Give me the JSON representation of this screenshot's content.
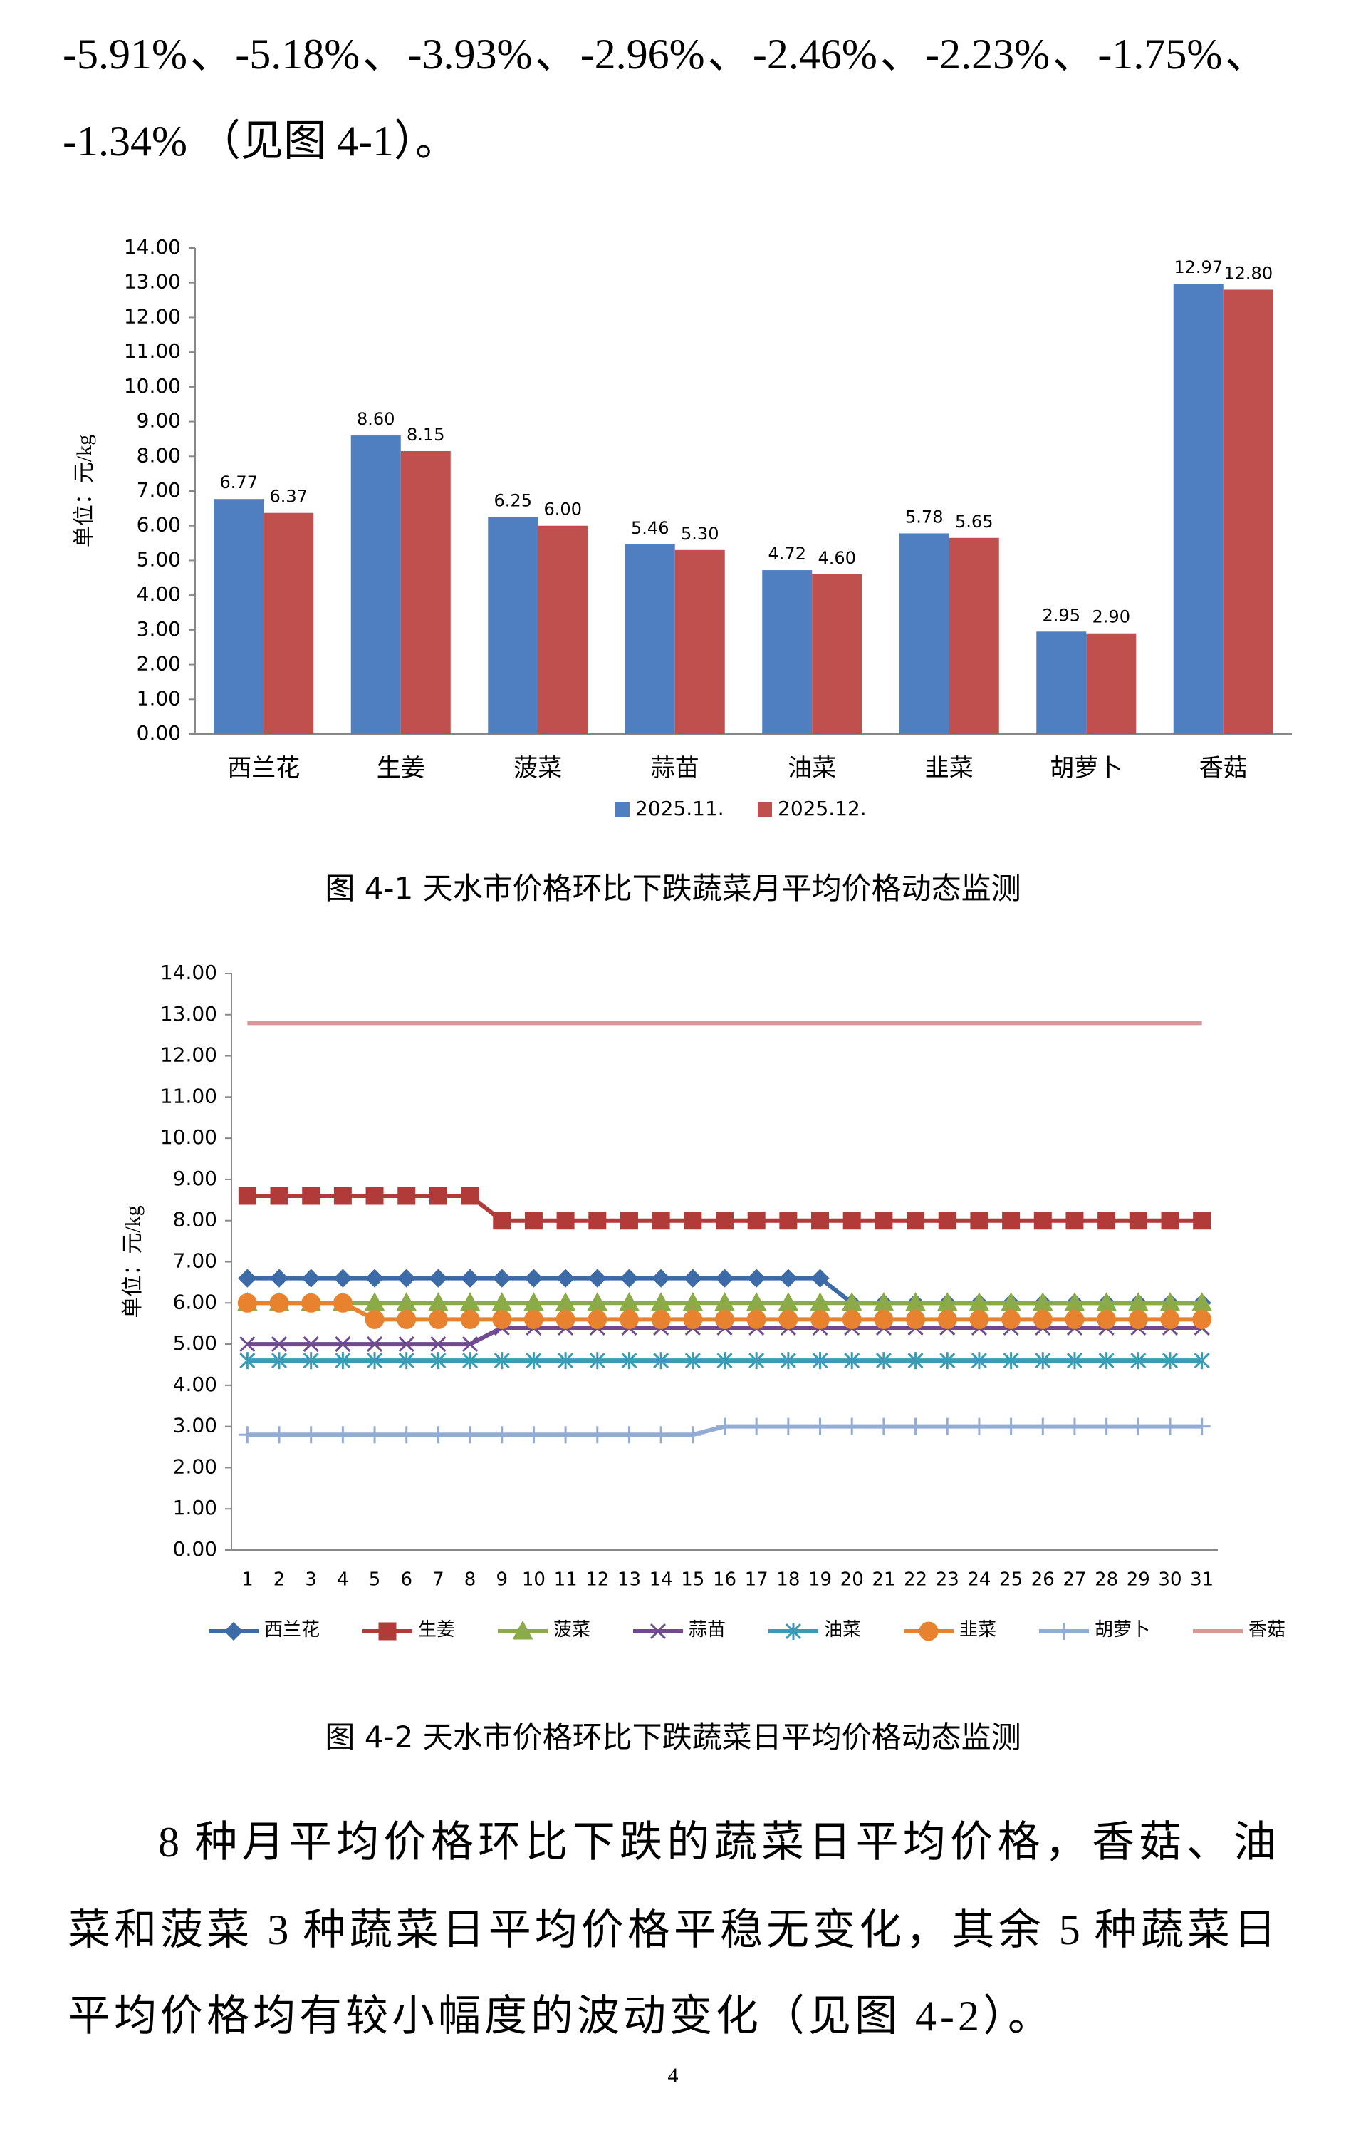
{
  "text_top": {
    "lines": [
      "-5.91%、-5.18%、-3.93%、-2.96%、-2.46%、-2.23%、-1.75%、",
      "-1.34% （见图 4-1）。"
    ]
  },
  "chart_data": [
    {
      "type": "bar",
      "y_label": "单位：元/kg",
      "categories": [
        "西兰花",
        "生姜",
        "菠菜",
        "蒜苗",
        "油菜",
        "韭菜",
        "胡萝卜",
        "香菇"
      ],
      "series": [
        {
          "name": "2025.11.",
          "color": "#4f7fc0",
          "values": [
            6.77,
            8.6,
            6.25,
            5.46,
            4.72,
            5.78,
            2.95,
            12.97
          ],
          "value_labels": [
            "6.77",
            "8.60",
            "6.25",
            "5.46",
            "4.72",
            "5.78",
            "2.95",
            "12.97"
          ]
        },
        {
          "name": "2025.12.",
          "color": "#c0504d",
          "values": [
            6.37,
            8.15,
            6.0,
            5.3,
            4.6,
            5.65,
            2.9,
            12.8
          ],
          "value_labels": [
            "6.37",
            "8.15",
            "6.00",
            "5.30",
            "4.60",
            "5.65",
            "2.90",
            "12.80"
          ]
        }
      ],
      "ylim": [
        0,
        14
      ],
      "yticks": [
        {
          "value": 0,
          "label": "0.00"
        },
        {
          "value": 1,
          "label": "1.00"
        },
        {
          "value": 2,
          "label": "2.00"
        },
        {
          "value": 3,
          "label": "3.00"
        },
        {
          "value": 4,
          "label": "4.00"
        },
        {
          "value": 5,
          "label": "5.00"
        },
        {
          "value": 6,
          "label": "6.00"
        },
        {
          "value": 7,
          "label": "7.00"
        },
        {
          "value": 8,
          "label": "8.00"
        },
        {
          "value": 9,
          "label": "9.00"
        },
        {
          "value": 10,
          "label": "10.00"
        },
        {
          "value": 11,
          "label": "11.00"
        },
        {
          "value": 12,
          "label": "12.00"
        },
        {
          "value": 13,
          "label": "13.00"
        },
        {
          "value": 14,
          "label": "14.00"
        }
      ],
      "grid": false,
      "legend": "bottom"
    },
    {
      "type": "line",
      "y_label": "单位：元/kg",
      "x": [
        1,
        2,
        3,
        4,
        5,
        6,
        7,
        8,
        9,
        10,
        11,
        12,
        13,
        14,
        15,
        16,
        17,
        18,
        19,
        20,
        21,
        22,
        23,
        24,
        25,
        26,
        27,
        28,
        29,
        30,
        31
      ],
      "xlim": [
        0.5,
        31.5
      ],
      "xticks": [
        1,
        2,
        3,
        4,
        5,
        6,
        7,
        8,
        9,
        10,
        11,
        12,
        13,
        14,
        15,
        16,
        17,
        18,
        19,
        20,
        21,
        22,
        23,
        24,
        25,
        26,
        27,
        28,
        29,
        30,
        31
      ],
      "series": [
        {
          "name": "西兰花",
          "color": "#3d6ba7",
          "marker": "diamond",
          "values": [
            6.6,
            6.6,
            6.6,
            6.6,
            6.6,
            6.6,
            6.6,
            6.6,
            6.6,
            6.6,
            6.6,
            6.6,
            6.6,
            6.6,
            6.6,
            6.6,
            6.6,
            6.6,
            6.6,
            6.0,
            6.0,
            6.0,
            6.0,
            6.0,
            6.0,
            6.0,
            6.0,
            6.0,
            6.0,
            6.0,
            6.0
          ]
        },
        {
          "name": "生姜",
          "color": "#b13b38",
          "marker": "square",
          "values": [
            8.6,
            8.6,
            8.6,
            8.6,
            8.6,
            8.6,
            8.6,
            8.6,
            8.0,
            8.0,
            8.0,
            8.0,
            8.0,
            8.0,
            8.0,
            8.0,
            8.0,
            8.0,
            8.0,
            8.0,
            8.0,
            8.0,
            8.0,
            8.0,
            8.0,
            8.0,
            8.0,
            8.0,
            8.0,
            8.0,
            8.0
          ]
        },
        {
          "name": "菠菜",
          "color": "#8aab48",
          "marker": "triangle",
          "values": [
            6.0,
            6.0,
            6.0,
            6.0,
            6.0,
            6.0,
            6.0,
            6.0,
            6.0,
            6.0,
            6.0,
            6.0,
            6.0,
            6.0,
            6.0,
            6.0,
            6.0,
            6.0,
            6.0,
            6.0,
            6.0,
            6.0,
            6.0,
            6.0,
            6.0,
            6.0,
            6.0,
            6.0,
            6.0,
            6.0,
            6.0
          ]
        },
        {
          "name": "蒜苗",
          "color": "#6f4a91",
          "marker": "x",
          "values": [
            5.0,
            5.0,
            5.0,
            5.0,
            5.0,
            5.0,
            5.0,
            5.0,
            5.4,
            5.4,
            5.4,
            5.4,
            5.4,
            5.4,
            5.4,
            5.4,
            5.4,
            5.4,
            5.4,
            5.4,
            5.4,
            5.4,
            5.4,
            5.4,
            5.4,
            5.4,
            5.4,
            5.4,
            5.4,
            5.4,
            5.4
          ]
        },
        {
          "name": "油菜",
          "color": "#3a9bb5",
          "marker": "asterisk",
          "values": [
            4.6,
            4.6,
            4.6,
            4.6,
            4.6,
            4.6,
            4.6,
            4.6,
            4.6,
            4.6,
            4.6,
            4.6,
            4.6,
            4.6,
            4.6,
            4.6,
            4.6,
            4.6,
            4.6,
            4.6,
            4.6,
            4.6,
            4.6,
            4.6,
            4.6,
            4.6,
            4.6,
            4.6,
            4.6,
            4.6,
            4.6
          ]
        },
        {
          "name": "韭菜",
          "color": "#e8822e",
          "marker": "circle",
          "values": [
            6.0,
            6.0,
            6.0,
            6.0,
            5.6,
            5.6,
            5.6,
            5.6,
            5.6,
            5.6,
            5.6,
            5.6,
            5.6,
            5.6,
            5.6,
            5.6,
            5.6,
            5.6,
            5.6,
            5.6,
            5.6,
            5.6,
            5.6,
            5.6,
            5.6,
            5.6,
            5.6,
            5.6,
            5.6,
            5.6,
            5.6
          ]
        },
        {
          "name": "胡萝卜",
          "color": "#93acd6",
          "marker": "plus",
          "values": [
            2.8,
            2.8,
            2.8,
            2.8,
            2.8,
            2.8,
            2.8,
            2.8,
            2.8,
            2.8,
            2.8,
            2.8,
            2.8,
            2.8,
            2.8,
            3.0,
            3.0,
            3.0,
            3.0,
            3.0,
            3.0,
            3.0,
            3.0,
            3.0,
            3.0,
            3.0,
            3.0,
            3.0,
            3.0,
            3.0,
            3.0
          ]
        },
        {
          "name": "香菇",
          "color": "#d99795",
          "marker": "none",
          "values": [
            12.8,
            12.8,
            12.8,
            12.8,
            12.8,
            12.8,
            12.8,
            12.8,
            12.8,
            12.8,
            12.8,
            12.8,
            12.8,
            12.8,
            12.8,
            12.8,
            12.8,
            12.8,
            12.8,
            12.8,
            12.8,
            12.8,
            12.8,
            12.8,
            12.8,
            12.8,
            12.8,
            12.8,
            12.8,
            12.8,
            12.8
          ]
        }
      ],
      "ylim": [
        0,
        14
      ],
      "yticks": [
        {
          "value": 0,
          "label": "0.00"
        },
        {
          "value": 1,
          "label": "1.00"
        },
        {
          "value": 2,
          "label": "2.00"
        },
        {
          "value": 3,
          "label": "3.00"
        },
        {
          "value": 4,
          "label": "4.00"
        },
        {
          "value": 5,
          "label": "5.00"
        },
        {
          "value": 6,
          "label": "6.00"
        },
        {
          "value": 7,
          "label": "7.00"
        },
        {
          "value": 8,
          "label": "8.00"
        },
        {
          "value": 9,
          "label": "9.00"
        },
        {
          "value": 10,
          "label": "10.00"
        },
        {
          "value": 11,
          "label": "11.00"
        },
        {
          "value": 12,
          "label": "12.00"
        },
        {
          "value": 13,
          "label": "13.00"
        },
        {
          "value": 14,
          "label": "14.00"
        }
      ],
      "grid": false,
      "legend": "bottom"
    }
  ],
  "captions": [
    "图 4-1  天水市价格环比下跌蔬菜月平均价格动态监测",
    "图 4-2  天水市价格环比下跌蔬菜日平均价格动态监测"
  ],
  "text_bottom": {
    "lines": [
      "8 种月平均价格环比下跌的蔬菜日平均价格，香菇、油",
      "菜和菠菜 3 种蔬菜日平均价格平稳无变化，其余 5 种蔬菜日",
      "平均价格均有较小幅度的波动变化（见图 4-2）。"
    ]
  },
  "page_number": "4"
}
